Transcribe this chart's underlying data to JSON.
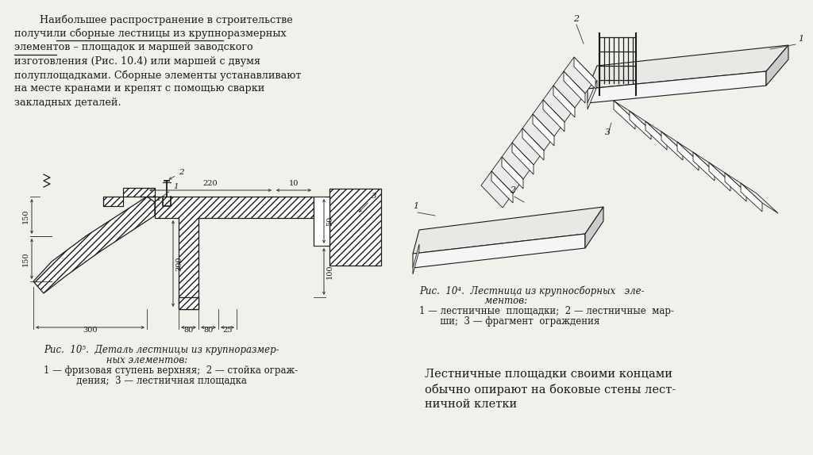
{
  "bg_color": "#f2f0eb",
  "text_color": "#1a1a1a",
  "fig_width": 10.24,
  "fig_height": 5.74,
  "para_lines": [
    "        Наибольшее распространение в строительстве",
    "получили сборные лестницы из крупноразмерных",
    "элементов – площадок и маршей заводского",
    "изготовления (Рис. 10.4) или маршей с двумя",
    "полуплощадками. Сборные элементы устанавливают",
    "на месте кранами и крепят с помощью сварки",
    "закладных деталей."
  ],
  "underline_ranges": [
    [
      1,
      9,
      45
    ],
    [
      2,
      0,
      9
    ]
  ],
  "fig104_cap1": "Рис.  10⁴.  Лестница из крупносборных   эле-",
  "fig104_cap2": "                      ментов:",
  "fig104_cap3": "1 — лестничные  площадки;  2 — лестничные  мар-",
  "fig104_cap4": "       ши;  3 — фрагмент  ограждения",
  "fig105_cap1": "Рис.  10⁵.  Деталь лестницы из крупноразмер-",
  "fig105_cap2": "                     ных элементов:",
  "fig105_cap3": "1 — фризовая ступень верхняя;  2 — стойка ограж-",
  "fig105_cap4": "           дения;  3 — лестничная площадка",
  "br_line1": "Лестничные площадки своими концами",
  "br_line2": "обычно опирают на боковые стены лест-",
  "br_line3": "ничной клетки"
}
